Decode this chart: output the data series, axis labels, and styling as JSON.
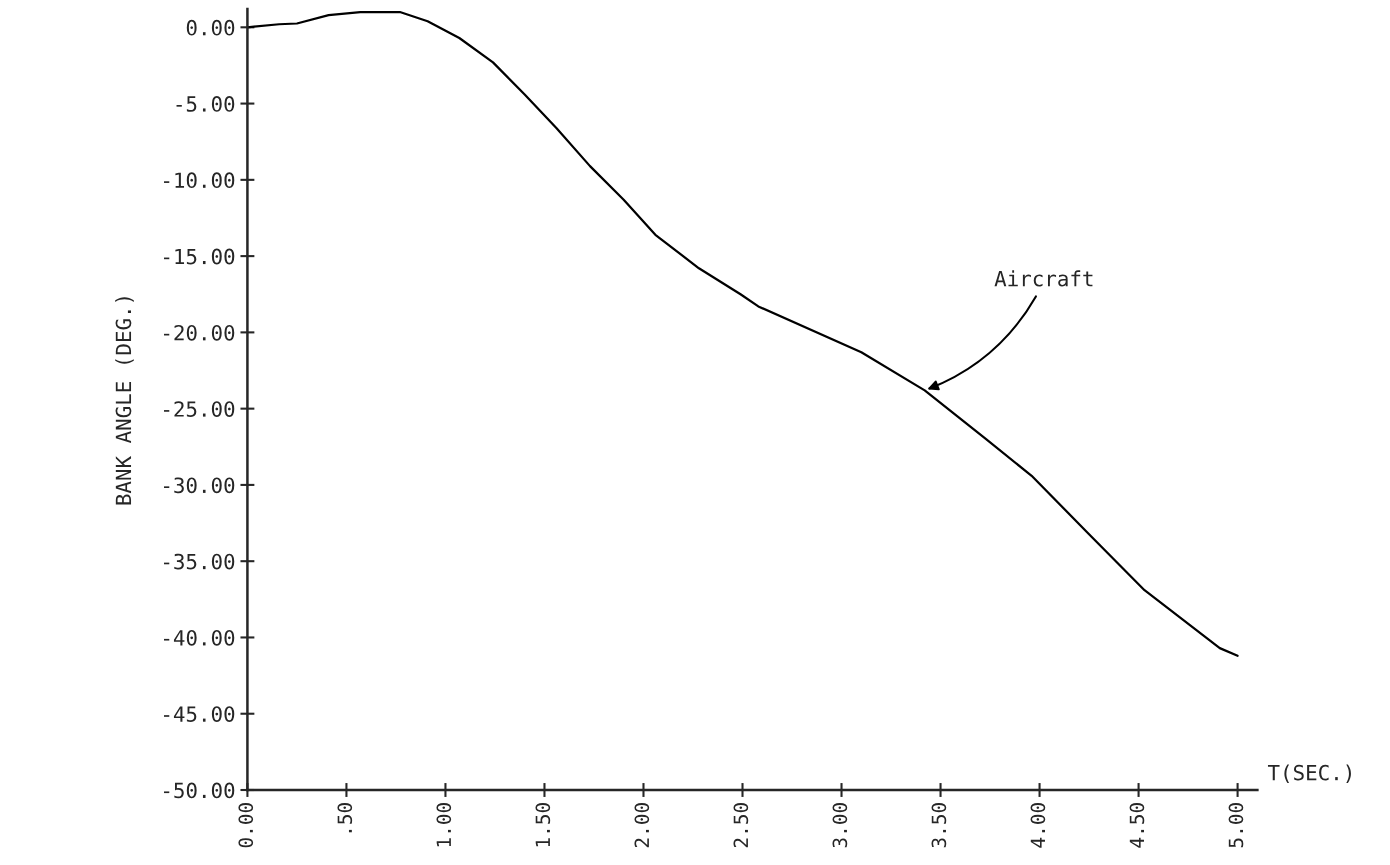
{
  "chart_data": {
    "type": "line",
    "xlabel": "T(SEC.)",
    "ylabel": "BANK ANGLE (DEG.)",
    "x": [
      0,
      0.16,
      0.25,
      0.41,
      0.57,
      0.77,
      0.91,
      1.07,
      1.24,
      1.4,
      1.56,
      1.73,
      1.9,
      2.06,
      2.28,
      2.49,
      2.58,
      3.1,
      3.42,
      3.73,
      3.96,
      4.24,
      4.53,
      4.91,
      5.0
    ],
    "series": [
      {
        "color": "#000000",
        "values": [
          0,
          0.2,
          0.25,
          0.8,
          1.0,
          1.0,
          0.4,
          -0.7,
          -2.3,
          -4.4,
          -6.6,
          -9.1,
          -11.3,
          -13.6,
          -15.8,
          -17.5,
          -18.3,
          -21.3,
          -23.8,
          -27.0,
          -29.4,
          -33.1,
          -36.9,
          -40.7,
          -41.2
        ]
      }
    ],
    "annotations": [
      {
        "text": "Aircraft",
        "x": 3.42,
        "y": -23.8
      }
    ],
    "xlim": [
      0,
      5.1
    ],
    "ylim": [
      -50,
      1.2
    ],
    "xticks": [
      {
        "value": 0,
        "label": "0.00"
      },
      {
        "value": 0.5,
        "label": ".50"
      },
      {
        "value": 1,
        "label": "1.00"
      },
      {
        "value": 1.5,
        "label": "1.50"
      },
      {
        "value": 2,
        "label": "2.00"
      },
      {
        "value": 2.5,
        "label": "2.50"
      },
      {
        "value": 3,
        "label": "3.00"
      },
      {
        "value": 3.5,
        "label": "3.50"
      },
      {
        "value": 4,
        "label": "4.00"
      },
      {
        "value": 4.5,
        "label": "4.50"
      },
      {
        "value": 5,
        "label": "5.00"
      }
    ],
    "yticks": [
      {
        "value": 0,
        "label": "0.00"
      },
      {
        "value": -5,
        "label": "-5.00"
      },
      {
        "value": -10,
        "label": "-10.00"
      },
      {
        "value": -15,
        "label": "-15.00"
      },
      {
        "value": -20,
        "label": "-20.00"
      },
      {
        "value": -25,
        "label": "-25.00"
      },
      {
        "value": -30,
        "label": "-30.00"
      },
      {
        "value": -35,
        "label": "-35.00"
      },
      {
        "value": -40,
        "label": "-40.00"
      },
      {
        "value": -45,
        "label": "-45.00"
      },
      {
        "value": -50,
        "label": "-50.00"
      }
    ],
    "grid": false,
    "legend": false,
    "marker": "none",
    "line_style": "solid"
  }
}
